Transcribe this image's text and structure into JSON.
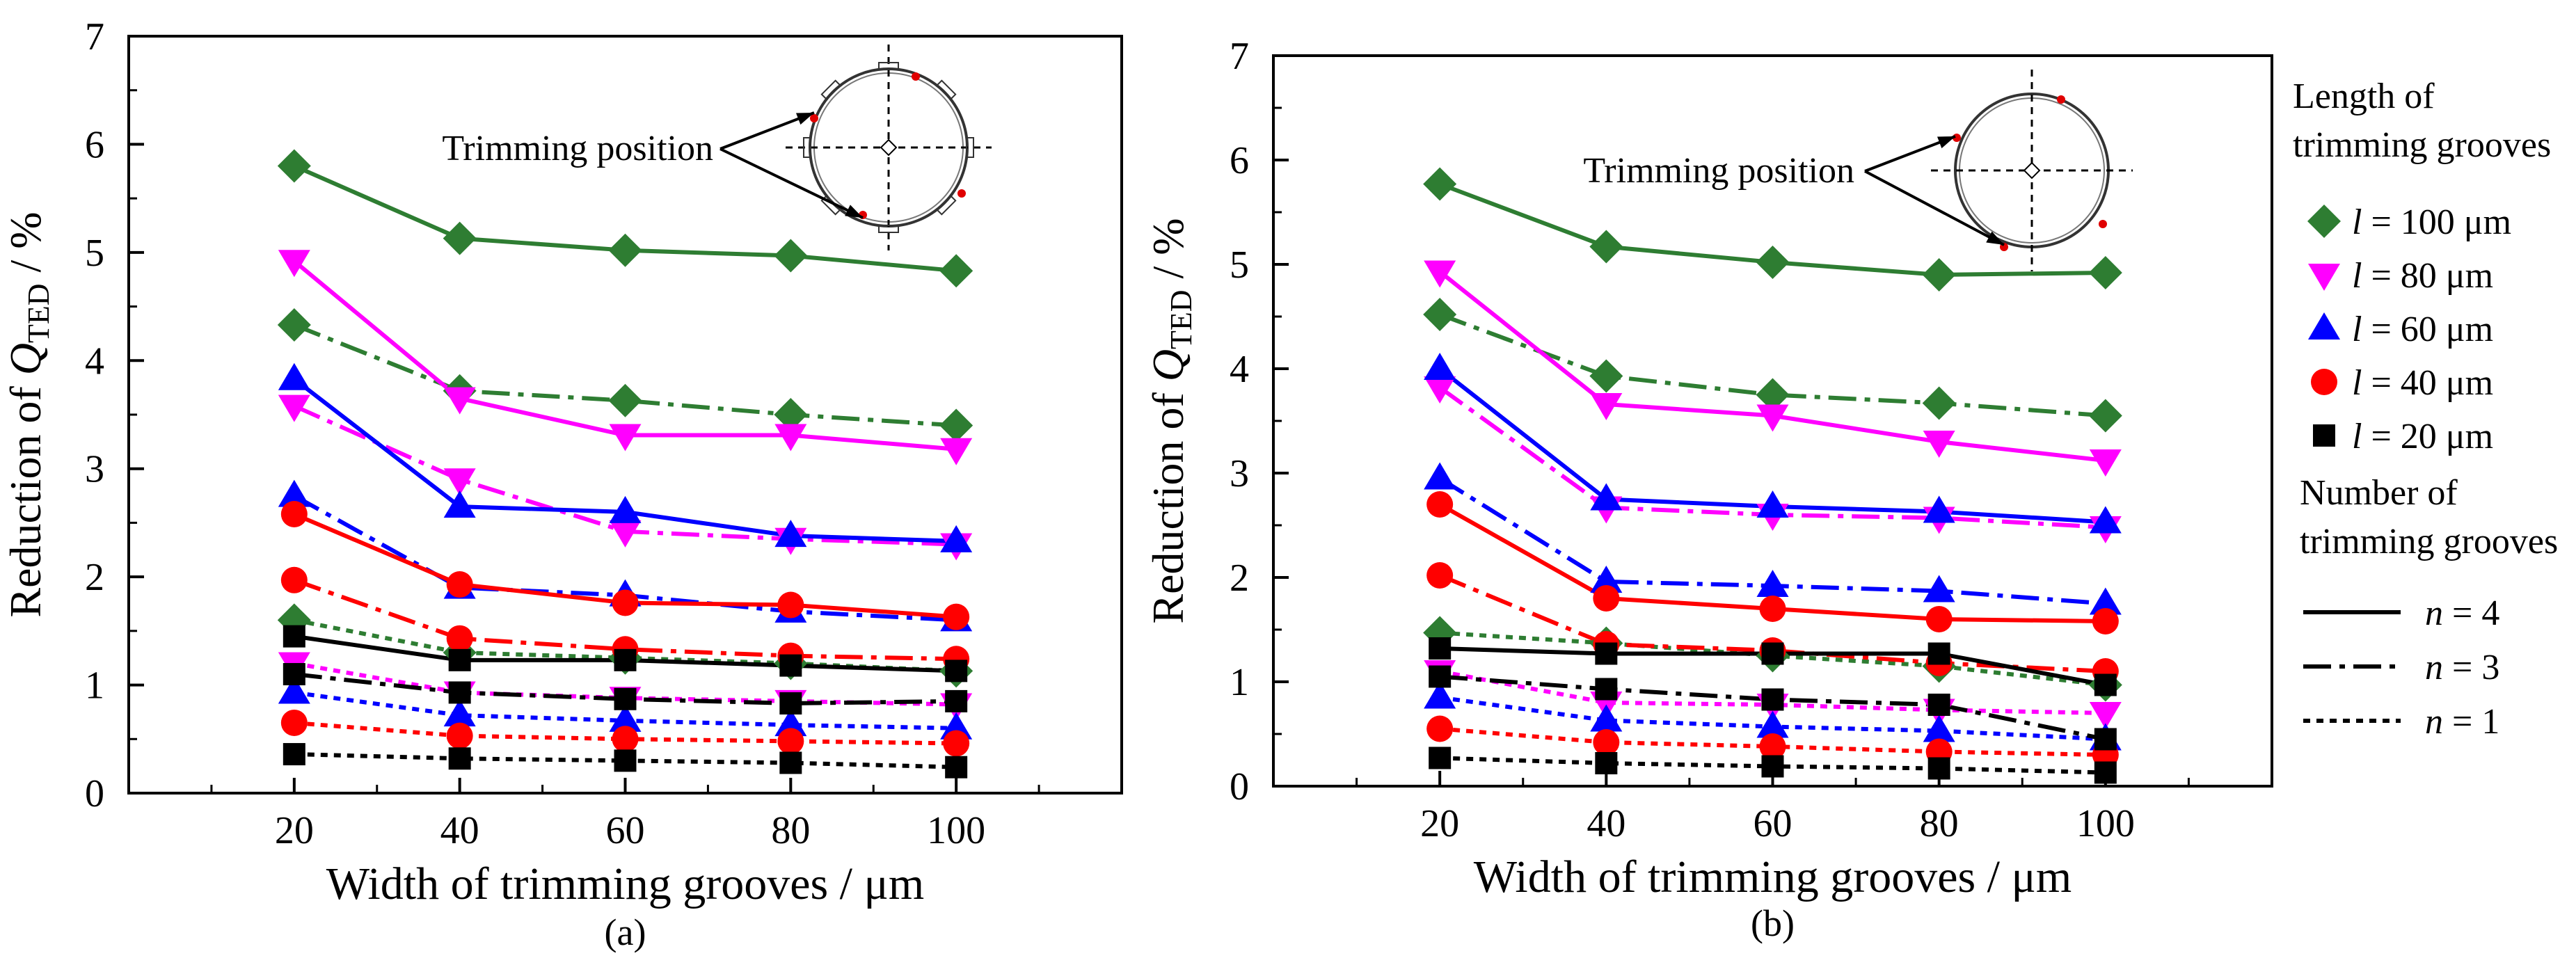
{
  "chart_data": [
    {
      "type": "line",
      "panel_label": "(a)",
      "xlabel": "Width of trimming grooves / μm",
      "ylabel_prefix": "Reduction of ",
      "ylabel_q": "Q",
      "ylabel_sub": "TED",
      "ylabel_suffix": " / %",
      "x": [
        20,
        40,
        60,
        80,
        100
      ],
      "xticks": [
        "20",
        "40",
        "60",
        "80",
        "100"
      ],
      "yticks": [
        "0",
        "1",
        "2",
        "3",
        "4",
        "5",
        "6",
        "7"
      ],
      "xlim": [
        0,
        120
      ],
      "ylim": [
        0,
        7
      ],
      "inset_label": "Trimming position",
      "series": [
        {
          "name": "l = 100 μm, n = 4",
          "length": 100,
          "n": 4,
          "values": [
            5.8,
            5.13,
            5.02,
            4.97,
            4.83
          ]
        },
        {
          "name": "l = 100 μm, n = 3",
          "length": 100,
          "n": 3,
          "values": [
            4.33,
            3.72,
            3.63,
            3.5,
            3.4
          ]
        },
        {
          "name": "l = 100 μm, n = 1",
          "length": 100,
          "n": 1,
          "values": [
            1.6,
            1.3,
            1.25,
            1.2,
            1.13
          ]
        },
        {
          "name": "l = 80 μm, n = 4",
          "length": 80,
          "n": 4,
          "values": [
            4.92,
            3.65,
            3.31,
            3.31,
            3.18
          ]
        },
        {
          "name": "l = 80 μm, n = 3",
          "length": 80,
          "n": 3,
          "values": [
            3.58,
            2.9,
            2.42,
            2.35,
            2.3
          ]
        },
        {
          "name": "l = 80 μm, n = 1",
          "length": 80,
          "n": 1,
          "values": [
            1.2,
            0.93,
            0.88,
            0.85,
            0.82
          ]
        },
        {
          "name": "l = 60 μm, n = 4",
          "length": 60,
          "n": 4,
          "values": [
            3.83,
            2.65,
            2.6,
            2.38,
            2.33
          ]
        },
        {
          "name": "l = 60 μm, n = 3",
          "length": 60,
          "n": 3,
          "values": [
            2.75,
            1.9,
            1.83,
            1.68,
            1.6
          ]
        },
        {
          "name": "l = 60 μm, n = 1",
          "length": 60,
          "n": 1,
          "values": [
            0.93,
            0.72,
            0.67,
            0.63,
            0.6
          ]
        },
        {
          "name": "l = 40 μm, n = 4",
          "length": 40,
          "n": 4,
          "values": [
            2.58,
            1.93,
            1.76,
            1.74,
            1.63
          ]
        },
        {
          "name": "l = 40 μm, n = 3",
          "length": 40,
          "n": 3,
          "values": [
            1.97,
            1.43,
            1.33,
            1.27,
            1.24
          ]
        },
        {
          "name": "l = 40 μm, n = 1",
          "length": 40,
          "n": 1,
          "values": [
            0.65,
            0.53,
            0.5,
            0.48,
            0.46
          ]
        },
        {
          "name": "l = 20 μm, n = 4",
          "length": 20,
          "n": 4,
          "values": [
            1.45,
            1.23,
            1.23,
            1.18,
            1.13
          ]
        },
        {
          "name": "l = 20 μm, n = 3",
          "length": 20,
          "n": 3,
          "values": [
            1.1,
            0.93,
            0.87,
            0.83,
            0.85
          ]
        },
        {
          "name": "l = 20 μm, n = 1",
          "length": 20,
          "n": 1,
          "values": [
            0.36,
            0.32,
            0.3,
            0.28,
            0.24
          ]
        }
      ]
    },
    {
      "type": "line",
      "panel_label": "(b)",
      "xlabel": "Width of trimming grooves / μm",
      "ylabel_prefix": "Reduction of ",
      "ylabel_q": "Q",
      "ylabel_sub": "TED",
      "ylabel_suffix": " / %",
      "x": [
        20,
        40,
        60,
        80,
        100
      ],
      "xticks": [
        "20",
        "40",
        "60",
        "80",
        "100"
      ],
      "yticks": [
        "0",
        "1",
        "2",
        "3",
        "4",
        "5",
        "6",
        "7"
      ],
      "xlim": [
        0,
        120
      ],
      "ylim": [
        0,
        7
      ],
      "inset_label": "Trimming position",
      "series": [
        {
          "name": "l = 100 μm, n = 4",
          "length": 100,
          "n": 4,
          "values": [
            5.77,
            5.17,
            5.02,
            4.9,
            4.92
          ]
        },
        {
          "name": "l = 100 μm, n = 3",
          "length": 100,
          "n": 3,
          "values": [
            4.52,
            3.93,
            3.75,
            3.67,
            3.55
          ]
        },
        {
          "name": "l = 100 μm, n = 1",
          "length": 100,
          "n": 1,
          "values": [
            1.47,
            1.37,
            1.25,
            1.15,
            0.97
          ]
        },
        {
          "name": "l = 80 μm, n = 4",
          "length": 80,
          "n": 4,
          "values": [
            4.93,
            3.66,
            3.55,
            3.3,
            3.12
          ]
        },
        {
          "name": "l = 80 μm, n = 3",
          "length": 80,
          "n": 3,
          "values": [
            3.82,
            2.67,
            2.6,
            2.57,
            2.48
          ]
        },
        {
          "name": "l = 80 μm, n = 1",
          "length": 80,
          "n": 1,
          "values": [
            1.1,
            0.8,
            0.78,
            0.73,
            0.7
          ]
        },
        {
          "name": "l = 60 μm, n = 4",
          "length": 60,
          "n": 4,
          "values": [
            4.0,
            2.75,
            2.68,
            2.63,
            2.53
          ]
        },
        {
          "name": "l = 60 μm, n = 3",
          "length": 60,
          "n": 3,
          "values": [
            2.95,
            1.96,
            1.92,
            1.87,
            1.75
          ]
        },
        {
          "name": "l = 60 μm, n = 1",
          "length": 60,
          "n": 1,
          "values": [
            0.85,
            0.63,
            0.57,
            0.53,
            0.45
          ]
        },
        {
          "name": "l = 40 μm, n = 4",
          "length": 40,
          "n": 4,
          "values": [
            2.7,
            1.8,
            1.7,
            1.6,
            1.58
          ]
        },
        {
          "name": "l = 40 μm, n = 3",
          "length": 40,
          "n": 3,
          "values": [
            2.02,
            1.36,
            1.3,
            1.18,
            1.1
          ]
        },
        {
          "name": "l = 40 μm, n = 1",
          "length": 40,
          "n": 1,
          "values": [
            0.55,
            0.42,
            0.38,
            0.33,
            0.3
          ]
        },
        {
          "name": "l = 20 μm, n = 4",
          "length": 20,
          "n": 4,
          "values": [
            1.32,
            1.27,
            1.27,
            1.27,
            0.97
          ]
        },
        {
          "name": "l = 20 μm, n = 3",
          "length": 20,
          "n": 3,
          "values": [
            1.05,
            0.93,
            0.83,
            0.78,
            0.45
          ]
        },
        {
          "name": "l = 20 μm, n = 1",
          "length": 20,
          "n": 1,
          "values": [
            0.27,
            0.22,
            0.19,
            0.17,
            0.13
          ]
        }
      ]
    }
  ],
  "legend": {
    "length_title_line1": "Length of",
    "length_title_line2": "trimming grooves",
    "length_items": [
      {
        "sym": "l",
        "text": " = 100 μm",
        "length": 100
      },
      {
        "sym": "l",
        "text": " = 80 μm",
        "length": 80
      },
      {
        "sym": "l",
        "text": " = 60 μm",
        "length": 60
      },
      {
        "sym": "l",
        "text": " = 40 μm",
        "length": 40
      },
      {
        "sym": "l",
        "text": " = 20 μm",
        "length": 20
      }
    ],
    "number_title_line1": "Number of",
    "number_title_line2": "trimming grooves",
    "number_items": [
      {
        "sym": "n",
        "text": " = 4",
        "n": 4
      },
      {
        "sym": "n",
        "text": " = 3",
        "n": 3
      },
      {
        "sym": "n",
        "text": " = 1",
        "n": 1
      }
    ]
  },
  "styles": {
    "colors": {
      "100": "#2e7d32",
      "80": "#ff00ff",
      "60": "#0000ff",
      "40": "#ff0000",
      "20": "#000000"
    },
    "markers": {
      "100": "diamond",
      "80": "triangle-down",
      "60": "triangle-up",
      "40": "circle",
      "20": "square"
    },
    "dash": {
      "4": "",
      "3": "40 12 8 12",
      "1": "10 9"
    }
  }
}
